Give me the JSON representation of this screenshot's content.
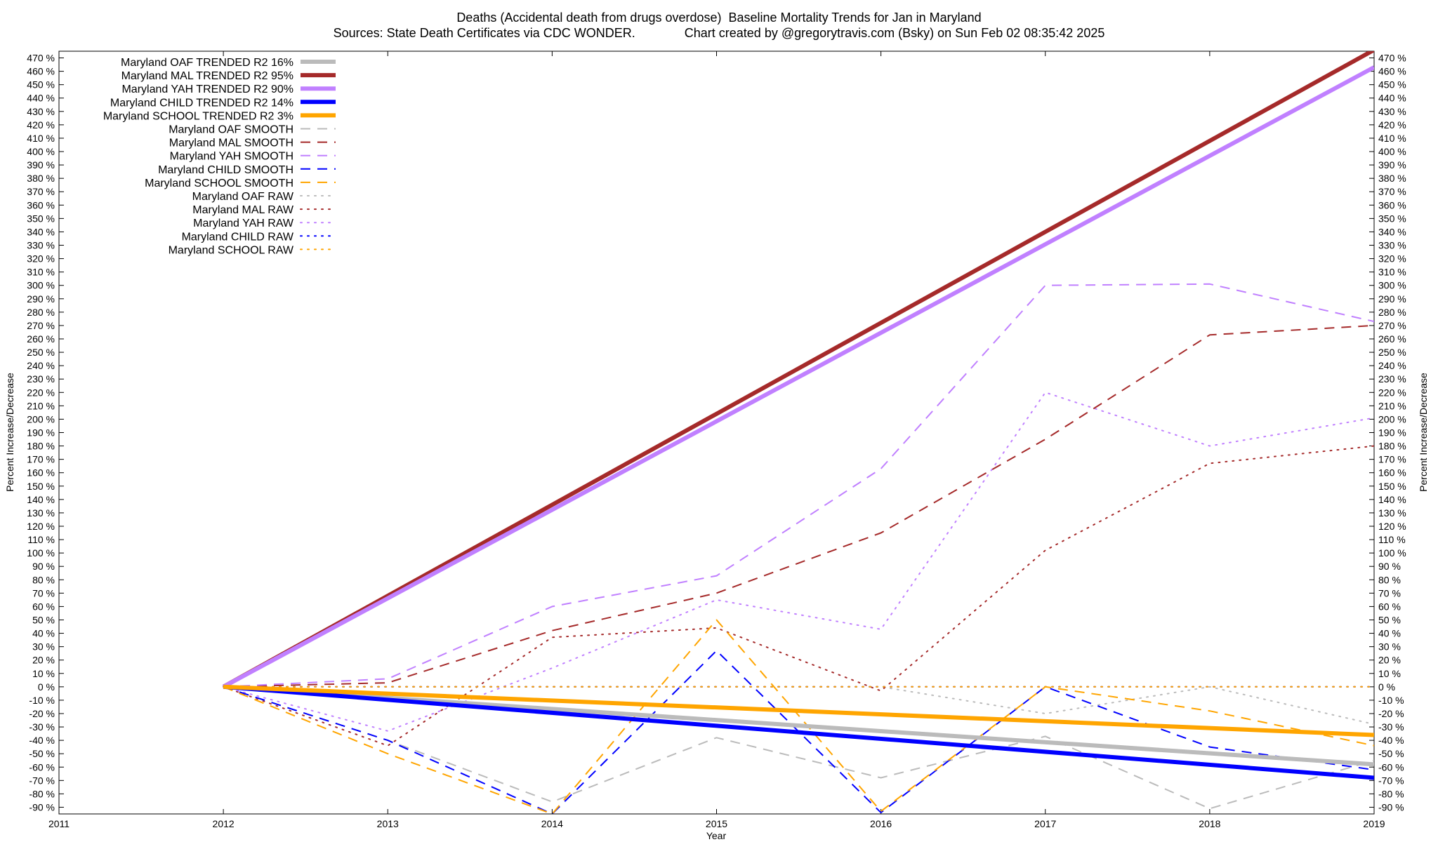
{
  "chart_data": {
    "type": "line",
    "title": "Deaths (Accidental death from drugs overdose)  Baseline Mortality Trends for Jan in Maryland",
    "subtitle": "Sources: State Death Certificates via CDC WONDER.              Chart created by @gregorytravis.com (Bsky) on Sun Feb 02 08:35:42 2025",
    "xlabel": "Year",
    "ylabel": "Percent Increase/Decrease",
    "y2label": "Percent Increase/Decrease",
    "xlim": [
      2011,
      2019
    ],
    "ylim": [
      -95,
      475
    ],
    "x_ticks": [
      "2011",
      "2012",
      "2013",
      "2014",
      "2015",
      "2016",
      "2017",
      "2018",
      "2019"
    ],
    "y_ticks": [
      "470 %",
      "460 %",
      "450 %",
      "440 %",
      "430 %",
      "420 %",
      "410 %",
      "400 %",
      "390 %",
      "380 %",
      "370 %",
      "360 %",
      "350 %",
      "340 %",
      "330 %",
      "320 %",
      "310 %",
      "300 %",
      "290 %",
      "280 %",
      "270 %",
      "260 %",
      "250 %",
      "240 %",
      "230 %",
      "220 %",
      "210 %",
      "200 %",
      "190 %",
      "180 %",
      "170 %",
      "160 %",
      "150 %",
      "140 %",
      "130 %",
      "120 %",
      "110 %",
      "100 %",
      "90 %",
      "80 %",
      "70 %",
      "60 %",
      "50 %",
      "40 %",
      "30 %",
      "20 %",
      "10 %",
      "0 %",
      "-10 %",
      "-20 %",
      "-30 %",
      "-40 %",
      "-50 %",
      "-60 %",
      "-70 %",
      "-80 %",
      "-90 %"
    ],
    "y_ticks_right": [
      "470 %",
      "460 %",
      "450 %",
      "440 %",
      "430 %",
      "420 %",
      "410 %",
      "400 %",
      "390 %",
      "380 %",
      "370 %",
      "360 %",
      "350 %",
      "340 %",
      "330 %",
      "320 %",
      "310 %",
      "300 %",
      "290 %",
      "280 %",
      "270 %",
      "260 %",
      "250 %",
      "240 %",
      "230 %",
      "220 %",
      "210 %",
      "200 %",
      "190 %",
      "180 %",
      "170 %",
      "160 %",
      "150 %",
      "140 %",
      "130 %",
      "120 %",
      "110 %",
      "100 %",
      "90 %",
      "80 %",
      "70 %",
      "60 %",
      "50 %",
      "40 %",
      "30 %",
      "20 %",
      "10 %",
      "0 %",
      "-10 %",
      "-20 %",
      "-30 %",
      "-40 %",
      "-50 %",
      "-60 %",
      "-70 %",
      "-80 %",
      "-90 %"
    ],
    "legend_placement": "top-left",
    "grid": false,
    "series": [
      {
        "name": "Maryland OAF TRENDED R2  16%",
        "style": "solid",
        "color": "#bbbbbb",
        "width": 6,
        "x": [
          2012,
          2019
        ],
        "y": [
          0,
          -58
        ]
      },
      {
        "name": "Maryland MAL TRENDED R2  95%",
        "style": "solid",
        "color": "#a52a2a",
        "width": 6,
        "x": [
          2012,
          2019
        ],
        "y": [
          0,
          476
        ]
      },
      {
        "name": "Maryland YAH TRENDED R2  90%",
        "style": "solid",
        "color": "#c080ff",
        "width": 6,
        "x": [
          2012,
          2019
        ],
        "y": [
          0,
          463
        ]
      },
      {
        "name": "Maryland CHILD TRENDED R2  14%",
        "style": "solid",
        "color": "#0000ff",
        "width": 6,
        "x": [
          2012,
          2019
        ],
        "y": [
          0,
          -68
        ]
      },
      {
        "name": "Maryland SCHOOL TRENDED R2  3%",
        "style": "solid",
        "color": "#ffa500",
        "width": 6,
        "x": [
          2012,
          2019
        ],
        "y": [
          0,
          -36
        ]
      },
      {
        "name": "Maryland OAF SMOOTH",
        "style": "dashed",
        "color": "#bbbbbb",
        "width": 2,
        "x": [
          2012,
          2013,
          2014,
          2015,
          2016,
          2017,
          2018,
          2019
        ],
        "y": [
          0,
          -40,
          -86,
          -38,
          -68,
          -37,
          -91,
          -55
        ]
      },
      {
        "name": "Maryland MAL SMOOTH",
        "style": "dashed",
        "color": "#a52a2a",
        "width": 2,
        "x": [
          2012,
          2013,
          2014,
          2015,
          2016,
          2017,
          2018,
          2019
        ],
        "y": [
          0,
          3,
          42,
          70,
          115,
          185,
          263,
          270
        ]
      },
      {
        "name": "Maryland YAH SMOOTH",
        "style": "dashed",
        "color": "#c080ff",
        "width": 2,
        "x": [
          2012,
          2013,
          2014,
          2015,
          2016,
          2017,
          2018,
          2019
        ],
        "y": [
          0,
          6,
          60,
          83,
          163,
          300,
          301,
          273
        ]
      },
      {
        "name": "Maryland CHILD SMOOTH",
        "style": "dashed",
        "color": "#0000ff",
        "width": 2,
        "x": [
          2012,
          2013,
          2014,
          2015,
          2016,
          2017,
          2018,
          2019
        ],
        "y": [
          0,
          -40,
          -95,
          27,
          -94,
          0,
          -45,
          -62
        ]
      },
      {
        "name": "Maryland SCHOOL SMOOTH",
        "style": "dashed",
        "color": "#ffa500",
        "width": 2,
        "x": [
          2012,
          2013,
          2014,
          2015,
          2016,
          2017,
          2018,
          2019
        ],
        "y": [
          0,
          -50,
          -95,
          50,
          -93,
          0,
          -18,
          -44
        ]
      },
      {
        "name": "Maryland OAF RAW",
        "style": "dotted",
        "color": "#bbbbbb",
        "width": 2,
        "x": [
          2012,
          2013,
          2014,
          2015,
          2016,
          2017,
          2018,
          2019
        ],
        "y": [
          0,
          0,
          0,
          0,
          0,
          -20,
          0,
          -28
        ]
      },
      {
        "name": "Maryland MAL RAW",
        "style": "dotted",
        "color": "#a52a2a",
        "width": 2,
        "x": [
          2012,
          2013,
          2014,
          2015,
          2016,
          2017,
          2018,
          2019
        ],
        "y": [
          0,
          -44,
          37,
          44,
          -3,
          102,
          167,
          180
        ]
      },
      {
        "name": "Maryland YAH RAW",
        "style": "dotted",
        "color": "#c080ff",
        "width": 2,
        "x": [
          2012,
          2013,
          2014,
          2015,
          2016,
          2017,
          2018,
          2019
        ],
        "y": [
          0,
          -33,
          14,
          65,
          43,
          220,
          180,
          201
        ]
      },
      {
        "name": "Maryland CHILD RAW",
        "style": "dotted",
        "color": "#0000ff",
        "width": 2,
        "x": [
          2012,
          2013,
          2014,
          2015,
          2016,
          2017,
          2018,
          2019
        ],
        "y": [
          0,
          0,
          0,
          0,
          0,
          0,
          0,
          0
        ]
      },
      {
        "name": "Maryland SCHOOL RAW",
        "style": "dotted",
        "color": "#ffa500",
        "width": 2,
        "x": [
          2012,
          2013,
          2014,
          2015,
          2016,
          2017,
          2018,
          2019
        ],
        "y": [
          0,
          0,
          0,
          0,
          0,
          0,
          0,
          0
        ]
      }
    ]
  }
}
